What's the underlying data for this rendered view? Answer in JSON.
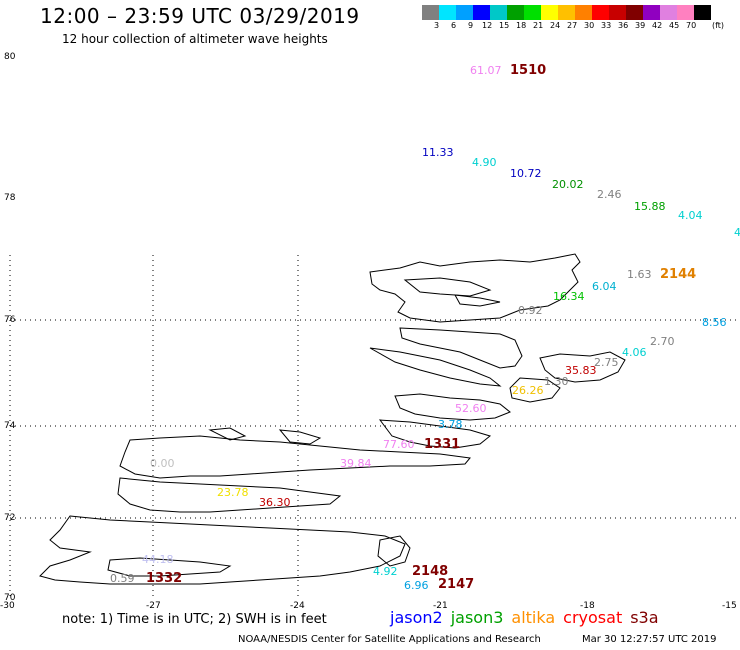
{
  "header": {
    "title": "12:00 – 23:59 UTC 03/29/2019",
    "subtitle": "12 hour collection of altimeter wave heights"
  },
  "legend": {
    "unit": "(ft)",
    "colors": [
      "#808080",
      "#00e5ff",
      "#00a0ff",
      "#0000ff",
      "#00c8c8",
      "#00a000",
      "#00e000",
      "#ffff00",
      "#ffc000",
      "#ff8000",
      "#ff0000",
      "#c80000",
      "#800000",
      "#9000c0",
      "#e080e0",
      "#ff80c0",
      "#000000"
    ],
    "labels": [
      "3",
      "6",
      "9",
      "12",
      "15",
      "18",
      "21",
      "24",
      "27",
      "30",
      "33",
      "36",
      "39",
      "42",
      "45",
      "70"
    ]
  },
  "map": {
    "lat_labels": [
      "80",
      "78",
      "76",
      "74",
      "72",
      "70"
    ],
    "lon_labels": [
      "-30",
      "-27",
      "-24",
      "-21",
      "-18",
      "-15"
    ],
    "observations": [
      {
        "text": "61.07",
        "color": "#f080f0"
      },
      {
        "text": "1510",
        "color": "#800000"
      },
      {
        "text": "11.33",
        "color": "#0000c0"
      },
      {
        "text": "4.90",
        "color": "#00d0d0"
      },
      {
        "text": "10.72",
        "color": "#0000c0"
      },
      {
        "text": "20.02",
        "color": "#009000"
      },
      {
        "text": "2.46",
        "color": "#808080"
      },
      {
        "text": "15.88",
        "color": "#00a000"
      },
      {
        "text": "4.04",
        "color": "#00d0d0"
      },
      {
        "text": "4",
        "color": "#00d0d0"
      },
      {
        "text": "1.63",
        "color": "#808080"
      },
      {
        "text": "2144",
        "color": "#e08000"
      },
      {
        "text": "6.04",
        "color": "#00b0d0"
      },
      {
        "text": "16.34",
        "color": "#00c000"
      },
      {
        "text": "0.92",
        "color": "#808080"
      },
      {
        "text": "8.56",
        "color": "#00a0e0"
      },
      {
        "text": "2.70",
        "color": "#808080"
      },
      {
        "text": "4.06",
        "color": "#00d0d0"
      },
      {
        "text": "2.75",
        "color": "#808080"
      },
      {
        "text": "35.83",
        "color": "#c00000"
      },
      {
        "text": "1.30",
        "color": "#808080"
      },
      {
        "text": "26.26",
        "color": "#f0c000"
      },
      {
        "text": "52.60",
        "color": "#f080f0"
      },
      {
        "text": "3.78",
        "color": "#00a0e0"
      },
      {
        "text": "77.60",
        "color": "#f080f0"
      },
      {
        "text": "1331",
        "color": "#800000"
      },
      {
        "text": "39.84",
        "color": "#f080f0"
      },
      {
        "text": "0.00",
        "color": "#c0c0c0"
      },
      {
        "text": "23.78",
        "color": "#f0e000"
      },
      {
        "text": "36.30",
        "color": "#c00000"
      },
      {
        "text": "44.18",
        "color": "#c0c0f0"
      },
      {
        "text": "0.59",
        "color": "#808080"
      },
      {
        "text": "1332",
        "color": "#800000"
      },
      {
        "text": "4.92",
        "color": "#00d0d0"
      },
      {
        "text": "2148",
        "color": "#800000"
      },
      {
        "text": "6.96",
        "color": "#00a0e0"
      },
      {
        "text": "2147",
        "color": "#800000"
      }
    ]
  },
  "footer": {
    "note": "note:  1) Time is in UTC;  2) SWH is in feet",
    "satellites": [
      {
        "name": "jason2",
        "color": "#0000ff"
      },
      {
        "name": "jason3",
        "color": "#00a000"
      },
      {
        "name": "altika",
        "color": "#ff9000"
      },
      {
        "name": "cryosat",
        "color": "#ff0000"
      },
      {
        "name": "s3a",
        "color": "#800000"
      }
    ],
    "credit": "NOAA/NESDIS Center for Satellite Applications and Research",
    "timestamp": "Mar 30 12:27:57 UTC 2019"
  }
}
